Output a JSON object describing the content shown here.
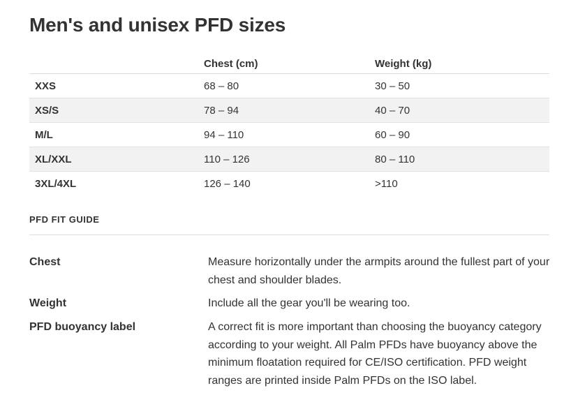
{
  "title": "Men's and unisex PFD sizes",
  "size_table": {
    "headers": [
      "",
      "Chest (cm)",
      "Weight (kg)"
    ],
    "rows": [
      {
        "size": "XXS",
        "chest": "68 – 80",
        "weight": "30 – 50"
      },
      {
        "size": "XS/S",
        "chest": "78 – 94",
        "weight": "40 – 70"
      },
      {
        "size": "M/L",
        "chest": "94 – 110",
        "weight": "60 – 90"
      },
      {
        "size": "XL/XXL",
        "chest": "110 – 126",
        "weight": "80 – 110"
      },
      {
        "size": "3XL/4XL",
        "chest": "126 – 140",
        "weight": ">110"
      }
    ]
  },
  "fit_guide": {
    "label": "PFD FIT GUIDE",
    "items": [
      {
        "term": "Chest",
        "description": "Measure horizontally under the armpits around the fullest part of your chest and shoulder blades."
      },
      {
        "term": "Weight",
        "description": "Include all the gear you'll be wearing too."
      },
      {
        "term": "PFD buoyancy label",
        "description": "A correct fit is more important than choosing the buoyancy category according to your weight. All Palm PFDs have buoyancy above the minimum floatation required for CE/ISO certification. PFD weight ranges are printed inside Palm PFDs on the ISO label."
      }
    ]
  },
  "colors": {
    "text": "#333333",
    "row_shade": "#f2f2f2",
    "divider": "#dcdcdc"
  }
}
